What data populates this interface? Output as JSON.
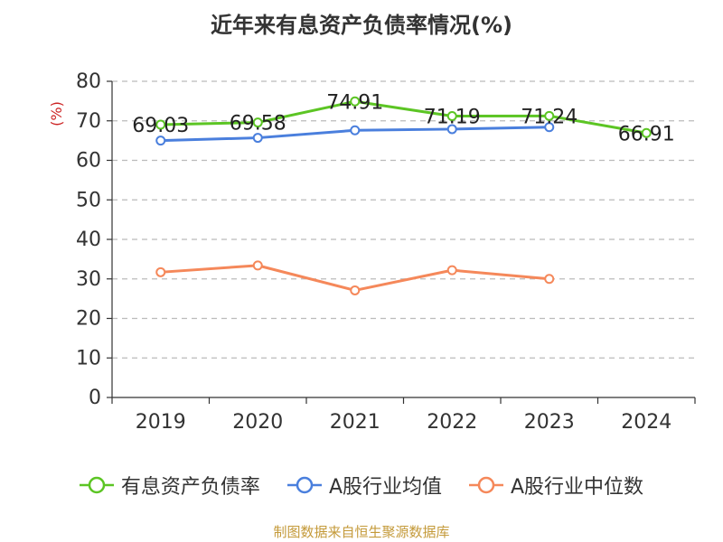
{
  "title": "近年来有息资产负债率情况(%)",
  "source_note": "制图数据来自恒生聚源数据库",
  "colors": {
    "series1": "#5cc524",
    "series2": "#4a7fdd",
    "series3": "#f5885a",
    "ylabel": "#cc2222",
    "grid": "#bbbbbb",
    "axis": "#333333",
    "text": "#333333",
    "source": "#c49a3a"
  },
  "chart_data": {
    "type": "line",
    "x": [
      "2019",
      "2020",
      "2021",
      "2022",
      "2023",
      "2024"
    ],
    "ylabel": "(%)",
    "ylim": [
      0,
      80
    ],
    "yticks": [
      0,
      10,
      20,
      30,
      40,
      50,
      60,
      70,
      80
    ],
    "grid": true,
    "legend_position": "bottom",
    "series": [
      {
        "name": "有息资产负债率",
        "values": [
          69.03,
          69.58,
          74.91,
          71.19,
          71.24,
          66.91
        ],
        "labels": [
          "69.03",
          "69.58",
          "74.91",
          "71.19",
          "71.24",
          "66.91"
        ]
      },
      {
        "name": "A股行业均值",
        "values": [
          65.0,
          65.7,
          67.6,
          67.9,
          68.4,
          null
        ]
      },
      {
        "name": "A股行业中位数",
        "values": [
          31.7,
          33.4,
          27.1,
          32.2,
          30.0,
          null
        ]
      }
    ]
  }
}
